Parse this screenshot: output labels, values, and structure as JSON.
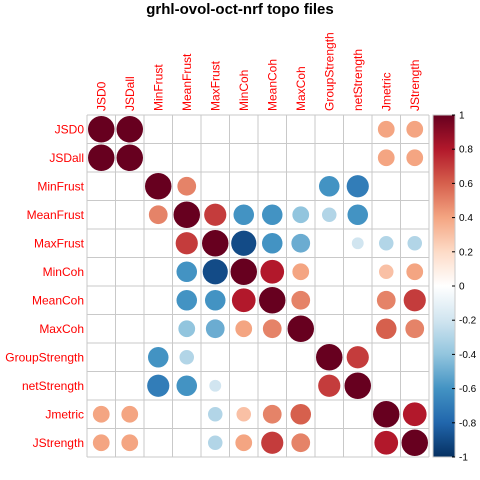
{
  "chart_data": {
    "type": "heatmap",
    "style": "correlation-circles",
    "title": "grhl-ovol-oct-nrf topo files",
    "variables": [
      "JSD0",
      "JSDall",
      "MinFrust",
      "MeanFrust",
      "MaxFrust",
      "MinCoh",
      "MeanCoh",
      "MaxCoh",
      "GroupStrength",
      "netStrength",
      "Jmetric",
      "JStrength"
    ],
    "values": [
      [
        1,
        1,
        null,
        null,
        null,
        null,
        null,
        null,
        null,
        null,
        0.4,
        0.4
      ],
      [
        1,
        1,
        null,
        null,
        null,
        null,
        null,
        null,
        null,
        null,
        0.4,
        0.4
      ],
      [
        null,
        null,
        1,
        0.5,
        null,
        null,
        null,
        null,
        -0.6,
        -0.7,
        null,
        null
      ],
      [
        null,
        null,
        0.5,
        1,
        0.7,
        -0.6,
        -0.6,
        -0.4,
        -0.3,
        -0.6,
        null,
        null
      ],
      [
        null,
        null,
        null,
        0.7,
        1,
        -0.9,
        -0.6,
        -0.5,
        null,
        -0.2,
        -0.3,
        -0.3
      ],
      [
        null,
        null,
        null,
        -0.6,
        -0.9,
        1,
        0.8,
        0.4,
        null,
        null,
        0.3,
        0.4
      ],
      [
        null,
        null,
        null,
        -0.6,
        -0.6,
        0.8,
        1,
        0.5,
        null,
        null,
        0.5,
        0.7
      ],
      [
        null,
        null,
        null,
        -0.4,
        -0.5,
        0.4,
        0.5,
        1,
        null,
        null,
        0.6,
        0.5
      ],
      [
        null,
        null,
        -0.6,
        -0.3,
        null,
        null,
        null,
        null,
        1,
        0.7,
        null,
        null
      ],
      [
        null,
        null,
        -0.7,
        -0.6,
        -0.2,
        null,
        null,
        null,
        0.7,
        1,
        null,
        null
      ],
      [
        0.4,
        0.4,
        null,
        null,
        -0.3,
        0.3,
        0.5,
        0.6,
        null,
        null,
        1,
        0.8
      ],
      [
        0.4,
        0.4,
        null,
        null,
        -0.3,
        0.4,
        0.7,
        0.5,
        null,
        null,
        0.8,
        1
      ]
    ],
    "colorbar": {
      "range": [
        -1,
        1
      ],
      "ticks": [
        1,
        0.8,
        0.6,
        0.4,
        0.2,
        0,
        -0.2,
        -0.4,
        -0.6,
        -0.8,
        -1
      ],
      "tick_labels": [
        "1",
        "0.8",
        "0.6",
        "0.4",
        "0.2",
        "0",
        "-0.2",
        "-0.4",
        "-0.6",
        "-0.8",
        "-1"
      ],
      "colors": [
        "#67001F",
        "#B2182B",
        "#D6604D",
        "#F4A582",
        "#FDDBC7",
        "#FFFFFF",
        "#D1E5F0",
        "#92C5DE",
        "#4393C3",
        "#2166AC",
        "#053061"
      ]
    },
    "label_color": "#FF0000",
    "grid": true,
    "legend_placement": "right"
  }
}
